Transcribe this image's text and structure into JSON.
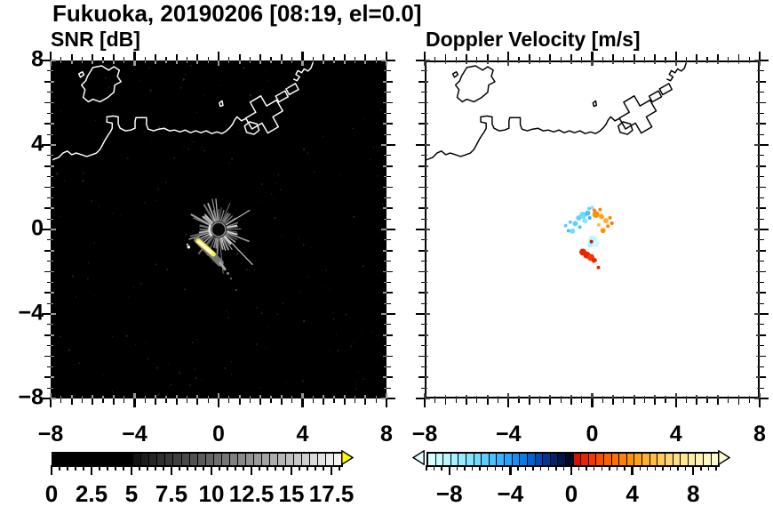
{
  "title": "Fukuoka, 20190206 [08:19, el=0.0]",
  "station": "Fukuoka",
  "date": "20190206",
  "time": "08:19",
  "elevation": "0.0",
  "panels": [
    {
      "subtitle": "SNR [dB]",
      "background": "#000000",
      "coast_color": "#ffffff",
      "inside_tick_color": "#9a9a9a",
      "x_tick_labels": [
        "−8",
        "−4",
        "0",
        "4",
        "8"
      ],
      "y_tick_labels": [
        "8",
        "4",
        "0",
        "−4",
        "−8"
      ]
    },
    {
      "subtitle": "Doppler Velocity [m/s]",
      "background": "#ffffff",
      "coast_color": "#000000",
      "inside_tick_color": "#444444",
      "x_tick_labels": [
        "−8",
        "−4",
        "0",
        "4",
        "8"
      ],
      "y_tick_labels": []
    }
  ],
  "chart_data": [
    {
      "type": "heatmap",
      "title": "SNR [dB]",
      "units": "dB",
      "xlim": [
        -8,
        8
      ],
      "ylim": [
        -8,
        8
      ],
      "xticks": [
        -8,
        -4,
        0,
        4,
        8
      ],
      "yticks": [
        -8,
        -4,
        0,
        4,
        8
      ],
      "minor_tick_step": 0.5,
      "background": "#000000",
      "colorbar": {
        "labels": [
          "0",
          "2.5",
          "5",
          "7.5",
          "10",
          "12.5",
          "15",
          "17.5"
        ],
        "tick_values": [
          0,
          2.5,
          5,
          7.5,
          10,
          12.5,
          15,
          17.5
        ],
        "range": [
          0,
          18
        ],
        "cell_step": 0.5,
        "over_color": "#ffff00",
        "colors": [
          "#000000",
          "#000000",
          "#000000",
          "#000000",
          "#000000",
          "#000000",
          "#000000",
          "#000000",
          "#000000",
          "#000000",
          "#131313",
          "#1c1c1c",
          "#252525",
          "#2e2e2e",
          "#373737",
          "#404040",
          "#494949",
          "#525252",
          "#5b5b5b",
          "#646464",
          "#6e6e6e",
          "#767676",
          "#808080",
          "#898989",
          "#929292",
          "#9b9b9b",
          "#a4a4a4",
          "#adadad",
          "#b6b6b6",
          "#bfbfbf",
          "#c8c8c8",
          "#d1d1d1",
          "#dadada",
          "#e3e3e3",
          "#ececec",
          "#f5f5f5"
        ]
      },
      "echo": {
        "center": [
          0,
          0
        ],
        "core_radius_px": 8,
        "ray_count": 50,
        "streak": {
          "x1": -1.02,
          "y1": -0.5,
          "x2": 0.08,
          "y2": -1.6,
          "core_color": "#ffffff",
          "mid_color": "#ffee44",
          "edge_color": "#777777"
        },
        "description": "ground-clutter starburst of weak gray echoes around radar origin with bright yellow-white streak toward the south-southwest"
      }
    },
    {
      "type": "scatter",
      "title": "Doppler Velocity [m/s]",
      "units": "m/s",
      "xlim": [
        -8,
        8
      ],
      "ylim": [
        -8,
        8
      ],
      "xticks": [
        -8,
        -4,
        0,
        4,
        8
      ],
      "yticks": [
        -8,
        -4,
        0,
        4,
        8
      ],
      "minor_tick_step": 0.5,
      "background": "#ffffff",
      "colorbar": {
        "labels": [
          "−8",
          "−4",
          "0",
          "4",
          "8"
        ],
        "tick_values": [
          -8,
          -4,
          0,
          4,
          8
        ],
        "range": [
          -9.5,
          9.5
        ],
        "cell_step": 0.5,
        "under_color": "#e4ffff",
        "over_color": "#fffeda",
        "colors": [
          "#d7ffff",
          "#c9fcff",
          "#b9f8ff",
          "#a8f3ff",
          "#96ecff",
          "#83e4ff",
          "#70daff",
          "#5dcfff",
          "#4ac2ff",
          "#38b3ff",
          "#27a2ff",
          "#188ff7",
          "#0c7ae8",
          "#0463d2",
          "#004cb4",
          "#003792",
          "#00246e",
          "#001449",
          "#000827",
          "#da0f00",
          "#e72400",
          "#f23900",
          "#fa4d00",
          "#fe6000",
          "#ff7200",
          "#ff8300",
          "#ff9300",
          "#ffa214",
          "#ffb02e",
          "#ffbd47",
          "#ffc95e",
          "#ffd473",
          "#ffde86",
          "#ffe697",
          "#ffeda6",
          "#fff3b3",
          "#fff7be",
          "#fffac7"
        ]
      },
      "points": [
        {
          "x": -0.65,
          "y": 0.55,
          "v": -6,
          "r": 3
        },
        {
          "x": -0.45,
          "y": 0.68,
          "v": -6.5,
          "r": 4
        },
        {
          "x": -0.22,
          "y": 0.78,
          "v": -5.5,
          "r": 3
        },
        {
          "x": -0.12,
          "y": 0.55,
          "v": -5,
          "r": 2
        },
        {
          "x": -0.82,
          "y": 0.28,
          "v": -6,
          "r": 3
        },
        {
          "x": -0.6,
          "y": 0.12,
          "v": -5.5,
          "r": 2
        },
        {
          "x": -0.95,
          "y": -0.08,
          "v": -6.5,
          "r": 3
        },
        {
          "x": -1.06,
          "y": 0.35,
          "v": -6,
          "r": 2
        },
        {
          "x": -0.35,
          "y": 0.42,
          "v": -7,
          "r": 3
        },
        {
          "x": -1.28,
          "y": 0.18,
          "v": -6,
          "r": 2
        },
        {
          "x": -1.15,
          "y": -0.06,
          "v": -5.5,
          "r": 2
        },
        {
          "x": 0.0,
          "y": 1.05,
          "v": -7,
          "r": 2
        },
        {
          "x": -0.15,
          "y": 1.0,
          "v": -6,
          "r": 2
        },
        {
          "x": 0.18,
          "y": 0.72,
          "v": 3.5,
          "r": 4
        },
        {
          "x": 0.45,
          "y": 0.62,
          "v": 4,
          "r": 3
        },
        {
          "x": 0.66,
          "y": 0.42,
          "v": 4.5,
          "r": 3
        },
        {
          "x": 0.76,
          "y": 0.16,
          "v": 3,
          "r": 2
        },
        {
          "x": 0.52,
          "y": -0.05,
          "v": 3.5,
          "r": 3
        },
        {
          "x": 0.32,
          "y": 0.22,
          "v": 5,
          "r": 2
        },
        {
          "x": 0.1,
          "y": 0.92,
          "v": 3,
          "r": 2
        },
        {
          "x": 0.86,
          "y": 0.56,
          "v": 3,
          "r": 2
        },
        {
          "x": 0.38,
          "y": 0.95,
          "v": 3,
          "r": 2
        },
        {
          "x": 0.95,
          "y": 0.3,
          "v": 2.5,
          "r": 2
        },
        {
          "x": 0.02,
          "y": -0.5,
          "v": -8.5,
          "r": 5
        },
        {
          "x": 0.16,
          "y": -0.68,
          "v": -9,
          "r": 4
        },
        {
          "x": -0.1,
          "y": -0.74,
          "v": -8,
          "r": 3
        },
        {
          "x": -0.04,
          "y": -0.58,
          "v": 0.3,
          "r": 2
        },
        {
          "x": -0.45,
          "y": -1.08,
          "v": 0.8,
          "r": 4
        },
        {
          "x": -0.26,
          "y": -1.22,
          "v": 0.5,
          "r": 4
        },
        {
          "x": -0.06,
          "y": -1.34,
          "v": 1.0,
          "r": 4
        },
        {
          "x": 0.1,
          "y": -1.48,
          "v": 0.6,
          "r": 3
        },
        {
          "x": 0.2,
          "y": -1.62,
          "v": -8.5,
          "r": 2
        },
        {
          "x": 0.3,
          "y": -1.82,
          "v": 0.5,
          "r": 2
        }
      ]
    }
  ],
  "coastline": {
    "pieces": [
      {
        "name": "island",
        "closed": true,
        "points": [
          [
            -6.31,
            7.33
          ],
          [
            -6.05,
            7.75
          ],
          [
            -5.63,
            7.83
          ],
          [
            -5.29,
            7.62
          ],
          [
            -5.04,
            7.79
          ],
          [
            -4.78,
            7.62
          ],
          [
            -4.87,
            7.33
          ],
          [
            -4.7,
            7.07
          ],
          [
            -5.0,
            6.91
          ],
          [
            -5.04,
            6.57
          ],
          [
            -5.33,
            6.32
          ],
          [
            -5.71,
            6.11
          ],
          [
            -6.05,
            6.23
          ],
          [
            -6.27,
            6.11
          ],
          [
            -6.52,
            6.32
          ],
          [
            -6.43,
            6.69
          ],
          [
            -6.6,
            6.91
          ],
          [
            -6.39,
            7.12
          ]
        ]
      },
      {
        "name": "islet",
        "closed": true,
        "points": [
          [
            -6.73,
            7.45
          ],
          [
            -6.56,
            7.54
          ],
          [
            -6.48,
            7.41
          ],
          [
            -6.65,
            7.28
          ]
        ]
      },
      {
        "name": "main-coast",
        "closed": false,
        "points": [
          [
            -8,
            3.33
          ],
          [
            -7.7,
            3.45
          ],
          [
            -7.49,
            3.66
          ],
          [
            -7.28,
            3.75
          ],
          [
            -7.07,
            3.58
          ],
          [
            -6.86,
            3.66
          ],
          [
            -6.6,
            3.58
          ],
          [
            -6.35,
            3.49
          ],
          [
            -6.1,
            3.58
          ],
          [
            -5.88,
            3.66
          ],
          [
            -5.71,
            3.83
          ],
          [
            -5.59,
            4.04
          ],
          [
            -5.46,
            4.29
          ],
          [
            -5.33,
            4.5
          ],
          [
            -5.21,
            4.67
          ],
          [
            -5.12,
            4.84
          ],
          [
            -5.12,
            5.09
          ],
          [
            -5.38,
            5.14
          ],
          [
            -5.38,
            5.39
          ],
          [
            -5.08,
            5.43
          ],
          [
            -4.83,
            5.39
          ],
          [
            -4.83,
            5.05
          ],
          [
            -4.74,
            4.84
          ],
          [
            -4.49,
            4.72
          ],
          [
            -4.23,
            4.76
          ],
          [
            -4.02,
            4.84
          ],
          [
            -4.02,
            5.18
          ],
          [
            -3.98,
            5.35
          ],
          [
            -3.68,
            5.35
          ],
          [
            -3.47,
            5.35
          ],
          [
            -3.47,
            5.01
          ],
          [
            -3.39,
            4.8
          ],
          [
            -3.13,
            4.72
          ],
          [
            -2.88,
            4.8
          ],
          [
            -2.62,
            4.84
          ],
          [
            -2.37,
            4.72
          ],
          [
            -2.12,
            4.76
          ],
          [
            -1.86,
            4.67
          ],
          [
            -1.61,
            4.76
          ],
          [
            -1.35,
            4.63
          ],
          [
            -1.1,
            4.72
          ],
          [
            -0.85,
            4.63
          ],
          [
            -0.59,
            4.72
          ],
          [
            -0.34,
            4.59
          ],
          [
            -0.08,
            4.67
          ],
          [
            0.17,
            4.59
          ],
          [
            0.38,
            4.72
          ],
          [
            0.55,
            4.88
          ],
          [
            0.68,
            5.05
          ],
          [
            0.76,
            5.22
          ],
          [
            0.89,
            5.39
          ],
          [
            1.1,
            5.2
          ],
          [
            1.3,
            5.3
          ]
        ]
      },
      {
        "name": "harbor-cross",
        "closed": true,
        "points": [
          [
            2.31,
            5.91
          ],
          [
            2.79,
            6.19
          ],
          [
            3.09,
            5.67
          ],
          [
            2.61,
            5.39
          ],
          [
            2.88,
            4.91
          ],
          [
            2.37,
            4.61
          ],
          [
            2.09,
            5.09
          ],
          [
            1.61,
            4.81
          ],
          [
            1.31,
            5.33
          ],
          [
            1.79,
            5.61
          ],
          [
            1.52,
            6.09
          ],
          [
            2.03,
            6.39
          ]
        ]
      },
      {
        "name": "harbor-quay-1",
        "closed": true,
        "points": [
          [
            2.9,
            6.1
          ],
          [
            3.35,
            6.35
          ],
          [
            3.2,
            6.63
          ],
          [
            2.75,
            6.38
          ]
        ]
      },
      {
        "name": "harbor-quay-2",
        "closed": true,
        "points": [
          [
            3.4,
            6.45
          ],
          [
            3.85,
            6.7
          ],
          [
            3.7,
            6.98
          ],
          [
            3.25,
            6.73
          ]
        ]
      },
      {
        "name": "north-spit",
        "closed": false,
        "points": [
          [
            4.55,
            8.0
          ],
          [
            4.45,
            7.72
          ],
          [
            4.3,
            7.58
          ],
          [
            4.12,
            7.68
          ],
          [
            4.0,
            7.5
          ],
          [
            3.82,
            7.6
          ],
          [
            3.72,
            7.42
          ],
          [
            3.9,
            7.3
          ],
          [
            3.78,
            7.12
          ],
          [
            3.6,
            7.2
          ]
        ]
      },
      {
        "name": "islet-south",
        "closed": true,
        "points": [
          [
            1.25,
            4.95
          ],
          [
            1.5,
            5.15
          ],
          [
            1.85,
            5.05
          ],
          [
            1.95,
            4.75
          ],
          [
            1.7,
            4.55
          ],
          [
            1.35,
            4.65
          ]
        ]
      },
      {
        "name": "islet-mid",
        "closed": true,
        "points": [
          [
            0.04,
            6.06
          ],
          [
            0.17,
            6.15
          ],
          [
            0.21,
            5.94
          ],
          [
            0.08,
            5.89
          ]
        ]
      }
    ]
  }
}
